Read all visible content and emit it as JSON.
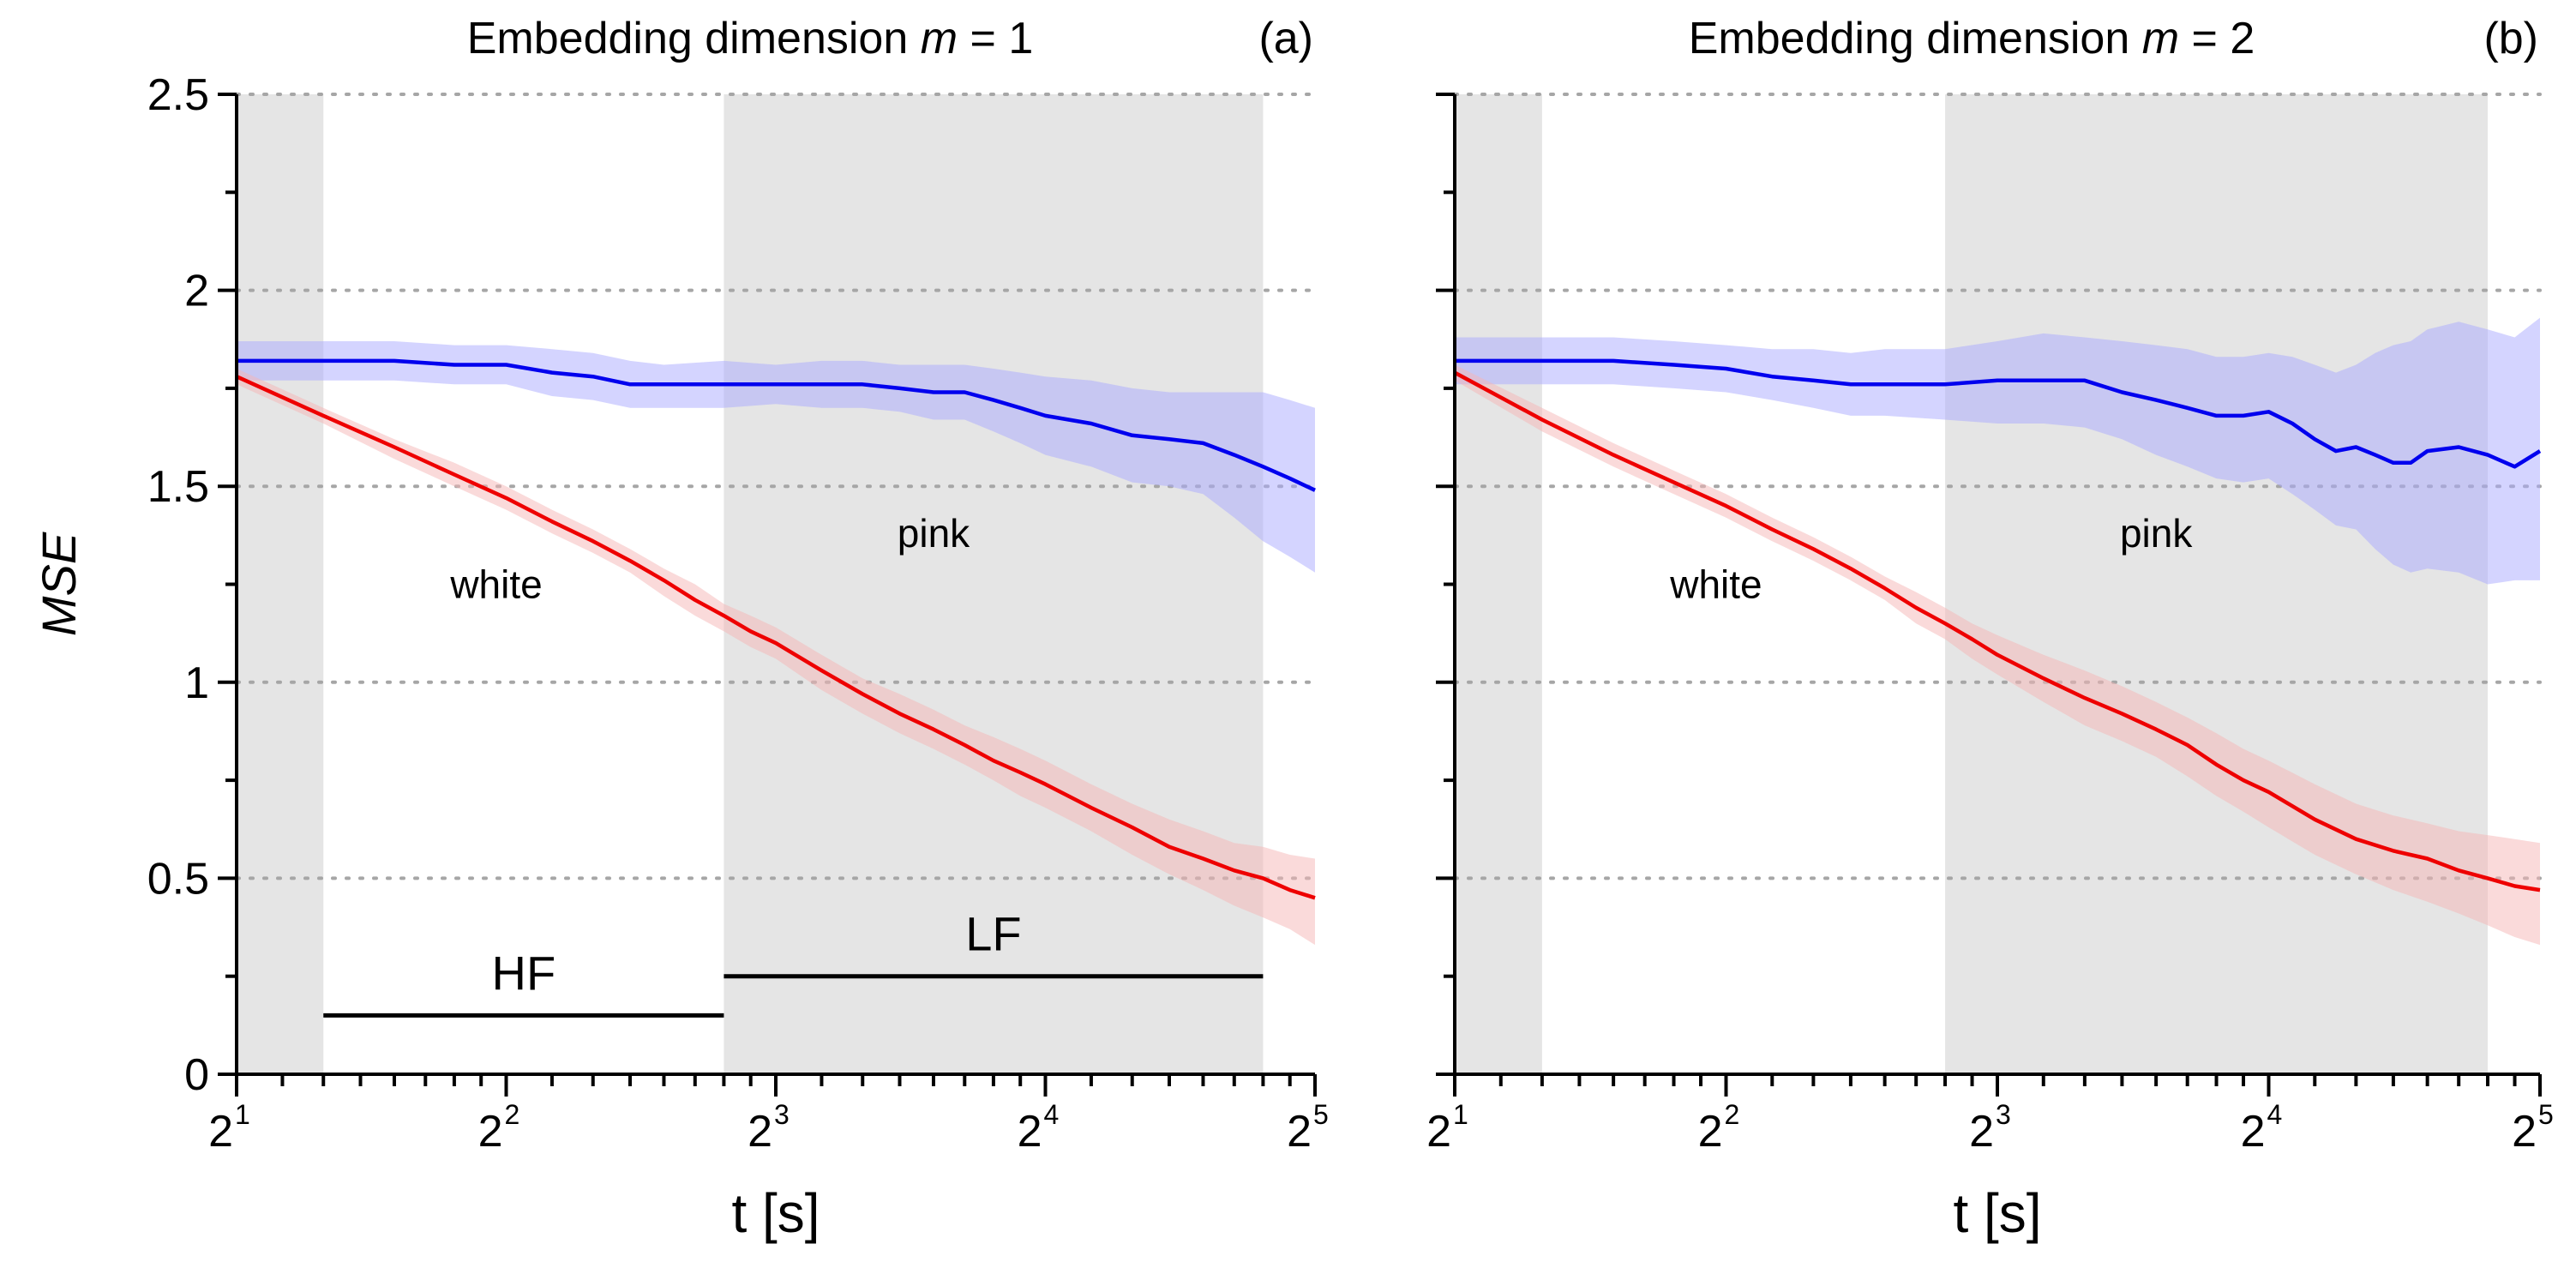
{
  "chart_data": [
    {
      "type": "line",
      "panel": "a",
      "panel_label": "(a)",
      "title_prefix": "Embedding dimension ",
      "title_var": "m",
      "title_suffix": " = 1",
      "xlabel": "t [s]",
      "ylabel": "MSE",
      "x_scale": "log2",
      "xlim": [
        2,
        32
      ],
      "ylim": [
        0,
        2.5
      ],
      "x_ticks": [
        {
          "base": "2",
          "exp": "1",
          "value": 2
        },
        {
          "base": "2",
          "exp": "2",
          "value": 4
        },
        {
          "base": "2",
          "exp": "3",
          "value": 8
        },
        {
          "base": "2",
          "exp": "4",
          "value": 16
        },
        {
          "base": "2",
          "exp": "5",
          "value": 32
        }
      ],
      "y_ticks": [
        {
          "label": "0",
          "value": 0
        },
        {
          "label": "0.5",
          "value": 0.5
        },
        {
          "label": "1",
          "value": 1
        },
        {
          "label": "1.5",
          "value": 1.5
        },
        {
          "label": "2",
          "value": 2
        },
        {
          "label": "2.5",
          "value": 2.5
        }
      ],
      "grid": "horizontal dotted",
      "shaded_regions": [
        [
          2,
          2.5
        ],
        [
          7,
          28
        ]
      ],
      "series": [
        {
          "name": "pink",
          "color": "#0000ee",
          "band_color": "#a9a9ff",
          "x": [
            2,
            2.5,
            3,
            3.5,
            4,
            4.5,
            5,
            5.5,
            6,
            7,
            8,
            9,
            10,
            11,
            12,
            13,
            14,
            15,
            16,
            18,
            20,
            22,
            24,
            26,
            28,
            30,
            32
          ],
          "y": [
            1.82,
            1.82,
            1.82,
            1.81,
            1.81,
            1.79,
            1.78,
            1.76,
            1.76,
            1.76,
            1.76,
            1.76,
            1.76,
            1.75,
            1.74,
            1.74,
            1.72,
            1.7,
            1.68,
            1.66,
            1.63,
            1.62,
            1.61,
            1.58,
            1.55,
            1.52,
            1.49
          ],
          "upper": [
            1.87,
            1.87,
            1.87,
            1.86,
            1.86,
            1.85,
            1.84,
            1.82,
            1.81,
            1.82,
            1.81,
            1.82,
            1.82,
            1.81,
            1.81,
            1.81,
            1.8,
            1.79,
            1.78,
            1.77,
            1.75,
            1.74,
            1.74,
            1.74,
            1.74,
            1.72,
            1.7
          ],
          "lower": [
            1.77,
            1.77,
            1.77,
            1.76,
            1.76,
            1.73,
            1.72,
            1.7,
            1.7,
            1.7,
            1.71,
            1.7,
            1.7,
            1.69,
            1.67,
            1.67,
            1.64,
            1.61,
            1.58,
            1.55,
            1.51,
            1.5,
            1.48,
            1.42,
            1.36,
            1.32,
            1.28
          ]
        },
        {
          "name": "white",
          "color": "#ee0000",
          "band_color": "#f5b5b5",
          "x": [
            2,
            2.5,
            3,
            3.5,
            4,
            4.5,
            5,
            5.5,
            6,
            6.5,
            7,
            7.5,
            8,
            9,
            10,
            11,
            12,
            13,
            14,
            15,
            16,
            18,
            20,
            22,
            24,
            26,
            28,
            30,
            32
          ],
          "y": [
            1.78,
            1.68,
            1.6,
            1.53,
            1.47,
            1.41,
            1.36,
            1.31,
            1.26,
            1.21,
            1.17,
            1.13,
            1.1,
            1.03,
            0.97,
            0.92,
            0.88,
            0.84,
            0.8,
            0.77,
            0.74,
            0.68,
            0.63,
            0.58,
            0.55,
            0.52,
            0.5,
            0.47,
            0.45
          ],
          "upper": [
            1.8,
            1.7,
            1.62,
            1.56,
            1.5,
            1.44,
            1.39,
            1.34,
            1.29,
            1.25,
            1.2,
            1.17,
            1.14,
            1.07,
            1.01,
            0.97,
            0.93,
            0.89,
            0.86,
            0.83,
            0.8,
            0.74,
            0.69,
            0.65,
            0.62,
            0.59,
            0.58,
            0.56,
            0.55
          ],
          "lower": [
            1.76,
            1.66,
            1.57,
            1.5,
            1.44,
            1.38,
            1.33,
            1.28,
            1.22,
            1.17,
            1.13,
            1.09,
            1.06,
            0.98,
            0.92,
            0.87,
            0.83,
            0.79,
            0.75,
            0.71,
            0.68,
            0.62,
            0.56,
            0.51,
            0.47,
            0.43,
            0.4,
            0.37,
            0.33
          ]
        }
      ],
      "annotations": [
        {
          "text": "white",
          "x": 3.9,
          "y": 1.25
        },
        {
          "text": "pink",
          "x": 12,
          "y": 1.38
        }
      ],
      "bands": [
        {
          "label": "HF",
          "x_start": 2.5,
          "x_end": 7,
          "y": 0.15
        },
        {
          "label": "LF",
          "x_start": 7,
          "x_end": 28,
          "y": 0.25
        }
      ]
    },
    {
      "type": "line",
      "panel": "b",
      "panel_label": "(b)",
      "title_prefix": "Embedding dimension ",
      "title_var": "m",
      "title_suffix": " = 2",
      "xlabel": "t [s]",
      "ylabel": "",
      "x_scale": "log2",
      "xlim": [
        2,
        32
      ],
      "ylim": [
        0,
        2.5
      ],
      "x_ticks": [
        {
          "base": "2",
          "exp": "1",
          "value": 2
        },
        {
          "base": "2",
          "exp": "2",
          "value": 4
        },
        {
          "base": "2",
          "exp": "3",
          "value": 8
        },
        {
          "base": "2",
          "exp": "4",
          "value": 16
        },
        {
          "base": "2",
          "exp": "5",
          "value": 32
        }
      ],
      "y_ticks": [],
      "grid": "horizontal dotted",
      "shaded_regions": [
        [
          2,
          2.5
        ],
        [
          7,
          28
        ]
      ],
      "series": [
        {
          "name": "pink",
          "color": "#0000ee",
          "band_color": "#a9a9ff",
          "x": [
            2,
            2.5,
            3,
            3.5,
            4,
            4.5,
            5,
            5.5,
            6,
            7,
            8,
            9,
            10,
            11,
            12,
            13,
            14,
            15,
            16,
            17,
            18,
            19,
            20,
            21,
            22,
            23,
            24,
            26,
            28,
            30,
            32
          ],
          "y": [
            1.82,
            1.82,
            1.82,
            1.81,
            1.8,
            1.78,
            1.77,
            1.76,
            1.76,
            1.76,
            1.77,
            1.77,
            1.77,
            1.74,
            1.72,
            1.7,
            1.68,
            1.68,
            1.69,
            1.66,
            1.62,
            1.59,
            1.6,
            1.58,
            1.56,
            1.56,
            1.59,
            1.6,
            1.58,
            1.55,
            1.59
          ],
          "upper": [
            1.88,
            1.88,
            1.88,
            1.87,
            1.86,
            1.85,
            1.85,
            1.84,
            1.85,
            1.85,
            1.87,
            1.89,
            1.88,
            1.87,
            1.86,
            1.85,
            1.83,
            1.83,
            1.84,
            1.83,
            1.81,
            1.79,
            1.81,
            1.84,
            1.86,
            1.87,
            1.9,
            1.92,
            1.9,
            1.88,
            1.93
          ],
          "lower": [
            1.76,
            1.76,
            1.76,
            1.75,
            1.74,
            1.72,
            1.7,
            1.68,
            1.68,
            1.67,
            1.66,
            1.66,
            1.65,
            1.62,
            1.58,
            1.55,
            1.52,
            1.51,
            1.52,
            1.48,
            1.44,
            1.4,
            1.39,
            1.34,
            1.3,
            1.28,
            1.29,
            1.28,
            1.25,
            1.26,
            1.26
          ]
        },
        {
          "name": "white",
          "color": "#ee0000",
          "band_color": "#f5b5b5",
          "x": [
            2,
            2.5,
            3,
            3.5,
            4,
            4.5,
            5,
            5.5,
            6,
            6.5,
            7,
            7.5,
            8,
            9,
            10,
            11,
            12,
            13,
            14,
            15,
            16,
            18,
            20,
            22,
            24,
            26,
            28,
            30,
            32
          ],
          "y": [
            1.79,
            1.67,
            1.58,
            1.51,
            1.45,
            1.39,
            1.34,
            1.29,
            1.24,
            1.19,
            1.15,
            1.11,
            1.07,
            1.01,
            0.96,
            0.92,
            0.88,
            0.84,
            0.79,
            0.75,
            0.72,
            0.65,
            0.6,
            0.57,
            0.55,
            0.52,
            0.5,
            0.48,
            0.47
          ],
          "upper": [
            1.81,
            1.7,
            1.61,
            1.54,
            1.48,
            1.42,
            1.37,
            1.32,
            1.27,
            1.23,
            1.19,
            1.15,
            1.12,
            1.07,
            1.03,
            0.99,
            0.95,
            0.91,
            0.87,
            0.83,
            0.8,
            0.74,
            0.69,
            0.66,
            0.64,
            0.62,
            0.61,
            0.6,
            0.59
          ],
          "lower": [
            1.77,
            1.64,
            1.55,
            1.48,
            1.42,
            1.36,
            1.31,
            1.26,
            1.21,
            1.15,
            1.11,
            1.06,
            1.02,
            0.95,
            0.89,
            0.85,
            0.81,
            0.76,
            0.71,
            0.67,
            0.63,
            0.56,
            0.51,
            0.47,
            0.44,
            0.41,
            0.38,
            0.35,
            0.33
          ]
        }
      ],
      "annotations": [
        {
          "text": "white",
          "x": 3.9,
          "y": 1.25
        },
        {
          "text": "pink",
          "x": 12,
          "y": 1.38
        }
      ],
      "bands": []
    }
  ]
}
